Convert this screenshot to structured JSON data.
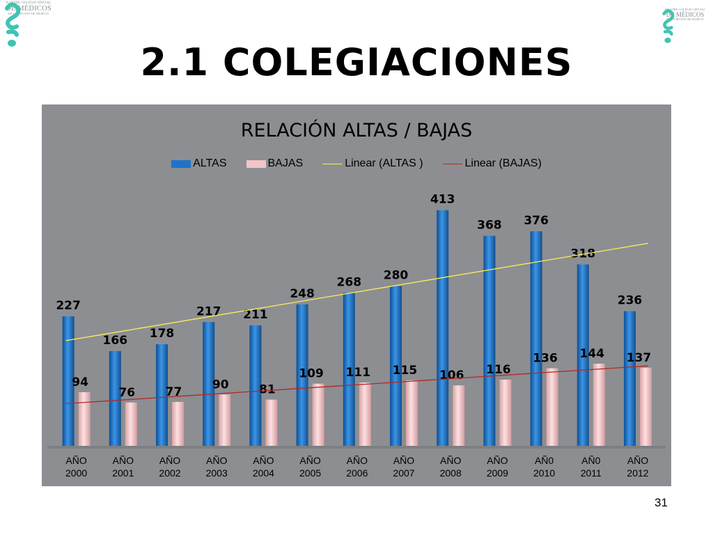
{
  "slide": {
    "title": "2.1 COLEGIACIONES",
    "page_number": "31"
  },
  "logo_left": {
    "line1": "ILUSTRE COLEGIO OFICIAL",
    "line2": "DE MÉDICOS",
    "line3": "DE LA REGIÓN DE MURCIA",
    "icon": "caduceus-icon",
    "color": "#3fc4b4"
  },
  "logo_right": {
    "line1": "ILUSTRE COLEGIO OFICIAL",
    "line2": "DE MÉDICOS",
    "line3": "DE LA REGIÓN DE MURCIA",
    "icon": "caduceus-icon",
    "color": "#3fc4b4"
  },
  "chart_data": {
    "type": "bar",
    "title": "RELACIÓN ALTAS / BAJAS",
    "categories": [
      [
        "AÑO",
        "2000"
      ],
      [
        "AÑO",
        "2001"
      ],
      [
        "AÑO",
        "2002"
      ],
      [
        "AÑO",
        "2003"
      ],
      [
        "AÑO",
        "2004"
      ],
      [
        "AÑO",
        "2005"
      ],
      [
        "AÑO",
        "2006"
      ],
      [
        "AÑO",
        "2007"
      ],
      [
        "AÑO",
        "2008"
      ],
      [
        "AÑO",
        "2009"
      ],
      [
        "AÑ0",
        "2010"
      ],
      [
        "AÑ0",
        "2011"
      ],
      [
        "AÑO",
        "2012"
      ]
    ],
    "series": [
      {
        "name": "ALTAS",
        "color": "#1e73c9",
        "values": [
          227,
          166,
          178,
          217,
          211,
          248,
          268,
          280,
          413,
          368,
          376,
          318,
          236
        ]
      },
      {
        "name": "BAJAS",
        "color": "#f2c4c6",
        "values": [
          94,
          76,
          77,
          90,
          81,
          109,
          111,
          115,
          106,
          116,
          136,
          144,
          137
        ]
      }
    ],
    "trendlines": [
      {
        "name": "Linear (ALTAS )",
        "color": "#ffee55",
        "of": "ALTAS"
      },
      {
        "name": "Linear (BAJAS)",
        "color": "#b22a22",
        "of": "BAJAS"
      }
    ],
    "ylim": [
      0,
      420
    ],
    "legend_position": "top",
    "grid": false,
    "background": "#8c8e92"
  }
}
